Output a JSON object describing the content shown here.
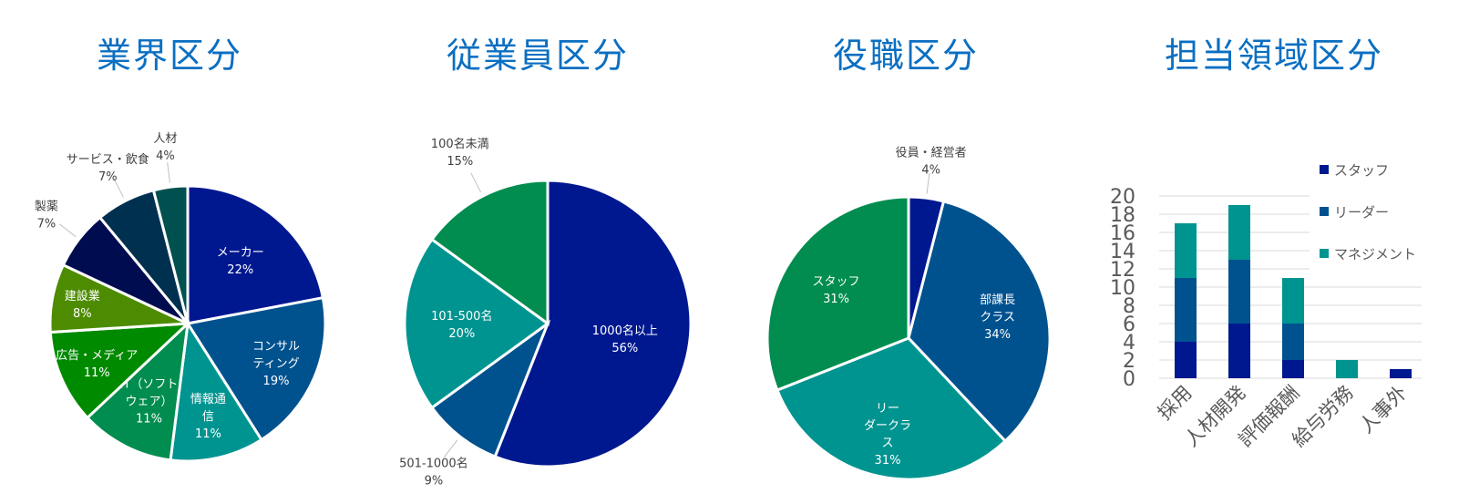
{
  "titles": [
    "業界区分",
    "従業員区分",
    "役職区分",
    "担当領域区分"
  ],
  "chart_data": [
    {
      "type": "pie",
      "title": "業界区分",
      "slices": [
        {
          "label": "メーカー",
          "value": 22,
          "pct": "22%",
          "color": "#00188f"
        },
        {
          "label": "コンサル\nティング",
          "value": 19,
          "pct": "19%",
          "color": "#00528f"
        },
        {
          "label": "情報通\n信",
          "value": 11,
          "pct": "11%",
          "color": "#009490"
        },
        {
          "label": "IT（ソフト\nウェア）",
          "value": 11,
          "pct": "11%",
          "color": "#008d4f"
        },
        {
          "label": "広告・メディア",
          "value": 11,
          "pct": "11%",
          "color": "#008a00"
        },
        {
          "label": "建設業",
          "value": 8,
          "pct": "8%",
          "color": "#4d8c00"
        },
        {
          "label": "製薬",
          "value": 7,
          "pct": "7%",
          "color": "#000c50"
        },
        {
          "label": "サービス・飲食",
          "value": 7,
          "pct": "7%",
          "color": "#003050"
        },
        {
          "label": "人材",
          "value": 4,
          "pct": "4%",
          "color": "#005050"
        }
      ]
    },
    {
      "type": "pie",
      "title": "従業員区分",
      "slices": [
        {
          "label": "1000名以上",
          "value": 56,
          "pct": "56%",
          "color": "#00188f"
        },
        {
          "label": "501-1000名",
          "value": 9,
          "pct": "9%",
          "color": "#00528f"
        },
        {
          "label": "101-500名",
          "value": 20,
          "pct": "20%",
          "color": "#009490"
        },
        {
          "label": "100名未満",
          "value": 15,
          "pct": "15%",
          "color": "#008d4f"
        }
      ]
    },
    {
      "type": "pie",
      "title": "役職区分",
      "slices": [
        {
          "label": "役員・経営者",
          "value": 4,
          "pct": "4%",
          "color": "#00188f"
        },
        {
          "label": "部課長\nクラス",
          "value": 34,
          "pct": "34%",
          "color": "#00528f"
        },
        {
          "label": "リー\nダークラ\nス",
          "value": 31,
          "pct": "31%",
          "color": "#009490"
        },
        {
          "label": "スタッフ",
          "value": 31,
          "pct": "31%",
          "color": "#008d4f"
        }
      ]
    },
    {
      "type": "bar",
      "stacked": true,
      "title": "担当領域区分",
      "categories": [
        "採用",
        "人材開発",
        "評価報酬",
        "給与労務",
        "人事外"
      ],
      "series": [
        {
          "name": "スタッフ",
          "values": [
            4,
            6,
            2,
            0,
            1
          ],
          "color": "#00188f"
        },
        {
          "name": "リーダー",
          "values": [
            7,
            7,
            4,
            0,
            0
          ],
          "color": "#00528f"
        },
        {
          "name": "マネジメント",
          "values": [
            6,
            6,
            5,
            2,
            0
          ],
          "color": "#009490"
        }
      ],
      "ylim": [
        0,
        20
      ],
      "yticks": [
        0,
        2,
        4,
        6,
        8,
        10,
        12,
        14,
        16,
        18,
        20
      ],
      "grid": true,
      "legend": "top-right"
    }
  ]
}
